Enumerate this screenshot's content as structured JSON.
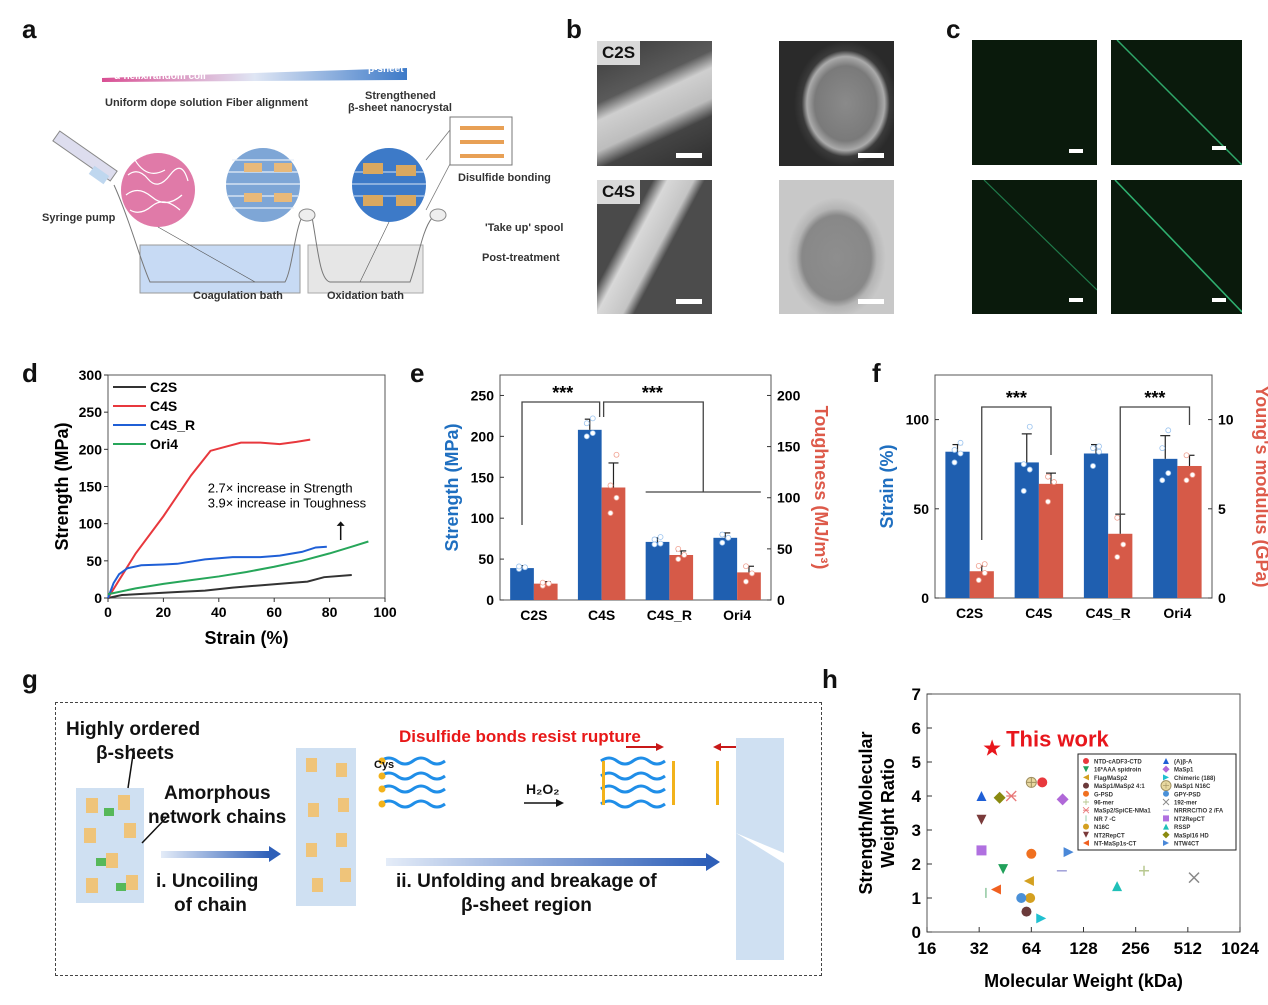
{
  "panels": {
    "a": {
      "label": "a",
      "gradient_left": "α-helix/random coil",
      "gradient_right": "β-sheet",
      "stage1": "Uniform dope solution",
      "stage2": "Fiber alignment",
      "stage3_line1": "Strengthened",
      "stage3_line2": "β-sheet nanocrystal",
      "disulfide": "Disulfide bonding",
      "syringe": "Syringe pump",
      "spool": "'Take up' spool",
      "post": "Post-treatment",
      "bath1": "Coagulation bath",
      "bath2": "Oxidation bath"
    },
    "b": {
      "label": "b",
      "row1_tag": "C2S",
      "row2_tag": "C4S"
    },
    "c": {
      "label": "c"
    },
    "d": {
      "label": "d",
      "annot1": "2.7× increase in Strength",
      "annot2": "3.9× increase in Toughness"
    },
    "e": {
      "label": "e",
      "sig1": "***",
      "sig2": "***"
    },
    "f": {
      "label": "f",
      "sig1": "***",
      "sig2": "***"
    },
    "g": {
      "label": "g",
      "ordered": "Highly ordered",
      "ordered2": "β-sheets",
      "amorphous": "Amorphous",
      "amorphous2": "network chains",
      "step1a": "i. Uncoiling",
      "step1b": "of chain",
      "disulfide": "Disulfide bonds resist rupture",
      "cys": "Cys",
      "h2o2": "H₂O₂",
      "step2a": "ii. Unfolding and breakage of",
      "step2b": "β-sheet region"
    },
    "h": {
      "label": "h",
      "annot": "This work"
    }
  },
  "colors": {
    "blue": "#1f5fb0",
    "red": "#d65a48",
    "c2s": "#333333",
    "c4s": "#e8383d",
    "c4s_r": "#1f5fd6",
    "ori4": "#27a65a",
    "this_work": "#e8161c",
    "strength_axis": "#1f6fc0",
    "toughness_axis": "#dd5a4a"
  },
  "chart_data": [
    {
      "id": "d",
      "type": "line",
      "xlabel": "Strain (%)",
      "ylabel": "Strength (MPa)",
      "xlim": [
        0,
        100
      ],
      "ylim": [
        0,
        300
      ],
      "xticks": [
        0,
        20,
        40,
        60,
        80,
        100
      ],
      "yticks": [
        0,
        50,
        100,
        150,
        200,
        250,
        300
      ],
      "legend": "top-left",
      "series": [
        {
          "name": "C2S",
          "color": "#333333",
          "points": [
            [
              0,
              0
            ],
            [
              5,
              4
            ],
            [
              15,
              6
            ],
            [
              25,
              8
            ],
            [
              35,
              10
            ],
            [
              45,
              14
            ],
            [
              55,
              17
            ],
            [
              65,
              20
            ],
            [
              72,
              22
            ],
            [
              78,
              28
            ],
            [
              88,
              31
            ]
          ]
        },
        {
          "name": "C4S",
          "color": "#e8383d",
          "points": [
            [
              0,
              0
            ],
            [
              5,
              30
            ],
            [
              10,
              60
            ],
            [
              20,
              110
            ],
            [
              30,
              165
            ],
            [
              37,
              198
            ],
            [
              40,
              201
            ],
            [
              48,
              209
            ],
            [
              55,
              209
            ],
            [
              62,
              207
            ],
            [
              68,
              210
            ],
            [
              73,
              213
            ]
          ]
        },
        {
          "name": "C4S_R",
          "color": "#1f5fd6",
          "points": [
            [
              0,
              0
            ],
            [
              2,
              20
            ],
            [
              4,
              32
            ],
            [
              7,
              40
            ],
            [
              12,
              44
            ],
            [
              20,
              45
            ],
            [
              25,
              46
            ],
            [
              35,
              52
            ],
            [
              45,
              55
            ],
            [
              55,
              55
            ],
            [
              62,
              57
            ],
            [
              70,
              62
            ],
            [
              75,
              68
            ],
            [
              79,
              69
            ]
          ]
        },
        {
          "name": "Ori4",
          "color": "#27a65a",
          "points": [
            [
              0,
              5
            ],
            [
              10,
              13
            ],
            [
              20,
              19
            ],
            [
              30,
              24
            ],
            [
              40,
              29
            ],
            [
              50,
              35
            ],
            [
              60,
              42
            ],
            [
              70,
              50
            ],
            [
              80,
              60
            ],
            [
              88,
              69
            ],
            [
              94,
              76
            ]
          ]
        }
      ],
      "annotations": [
        "2.7× increase in Strength",
        "3.9× increase in Toughness"
      ]
    },
    {
      "id": "e",
      "type": "bar",
      "categories": [
        "C2S",
        "C4S",
        "C4S_R",
        "Ori4"
      ],
      "ylabel": "Strength (MPa)",
      "y2label": "Toughness (MJ/m³)",
      "ylim": [
        0,
        275
      ],
      "y2lim": [
        0,
        220
      ],
      "yticks": [
        0,
        50,
        100,
        150,
        200,
        250
      ],
      "y2ticks": [
        0,
        50,
        100,
        150,
        200
      ],
      "series": [
        {
          "name": "Strength",
          "axis": "left",
          "values": [
            39,
            208,
            71,
            76
          ],
          "errors": [
            3,
            13,
            5,
            6
          ],
          "points": [
            [
              38,
              40,
              41
            ],
            [
              200,
              204,
              216,
              222
            ],
            [
              68,
              69,
              74,
              77
            ],
            [
              70,
              76,
              80
            ]
          ]
        },
        {
          "name": "Toughness",
          "axis": "right",
          "values": [
            16,
            110,
            44,
            27
          ],
          "errors": [
            2,
            24,
            4,
            6
          ],
          "points": [
            [
              14,
              16,
              17
            ],
            [
              85,
              100,
              112,
              142
            ],
            [
              40,
              44,
              50
            ],
            [
              18,
              26,
              33
            ]
          ]
        }
      ],
      "significance": [
        {
          "label": "***",
          "from": "C2S",
          "to": "C4S"
        },
        {
          "label": "***",
          "from": "C4S",
          "to": [
            "C4S_R",
            "Ori4"
          ]
        }
      ]
    },
    {
      "id": "f",
      "type": "bar",
      "categories": [
        "C2S",
        "C4S",
        "C4S_R",
        "Ori4"
      ],
      "ylabel": "Strain (%)",
      "y2label": "Young's modulus (GPa)",
      "ylim": [
        0,
        125
      ],
      "y2lim": [
        0,
        12.5
      ],
      "yticks": [
        0,
        50,
        100
      ],
      "y2ticks": [
        0,
        5,
        10
      ],
      "series": [
        {
          "name": "Strain",
          "axis": "left",
          "values": [
            82,
            76,
            81,
            78
          ],
          "errors": [
            4,
            16,
            5,
            13
          ],
          "points": [
            [
              76,
              81,
              83,
              87
            ],
            [
              60,
              72,
              75,
              96
            ],
            [
              74,
              82,
              84,
              85
            ],
            [
              66,
              70,
              84,
              94
            ]
          ]
        },
        {
          "name": "Young's modulus",
          "axis": "right",
          "values": [
            1.5,
            6.4,
            3.6,
            7.4
          ],
          "errors": [
            0.3,
            0.6,
            1.1,
            0.6
          ],
          "points": [
            [
              1.0,
              1.4,
              1.8,
              1.9
            ],
            [
              5.4,
              6.5,
              6.8
            ],
            [
              2.3,
              3.0,
              4.5
            ],
            [
              6.6,
              6.9,
              8.0
            ]
          ]
        }
      ],
      "significance": [
        {
          "label": "***",
          "from": "C2S",
          "to": "C4S"
        },
        {
          "label": "***",
          "from": "C4S_R",
          "to": "Ori4"
        }
      ]
    },
    {
      "id": "h",
      "type": "scatter",
      "xlabel": "Molecular Weight (kDa)",
      "ylabel": "Strength/Molecular Weight Ratio",
      "xscale": "log2",
      "xlim": [
        16,
        1024
      ],
      "ylim": [
        0,
        7
      ],
      "xticks": [
        16,
        32,
        64,
        128,
        256,
        512,
        1024
      ],
      "yticks": [
        0,
        1,
        2,
        3,
        4,
        5,
        6,
        7
      ],
      "legend": "top-right",
      "highlight": {
        "name": "This work",
        "x": 38,
        "y": 5.4,
        "marker": "star",
        "color": "#e8161c"
      },
      "series": [
        {
          "name": "NTD-cADF3-CTD",
          "marker": "circle",
          "color": "#e8383d",
          "x": 74,
          "y": 4.4
        },
        {
          "name": "16*AAA spidroin",
          "marker": "tri-down",
          "color": "#21a05a",
          "x": 44,
          "y": 1.85
        },
        {
          "name": "Flag/MaSp2",
          "marker": "tri-left",
          "color": "#d4a020",
          "x": 62,
          "y": 1.5
        },
        {
          "name": "MaSp1/MaSp2 4:1",
          "marker": "circle",
          "color": "#6b3a3a",
          "x": 60,
          "y": 0.6
        },
        {
          "name": "G-PSD",
          "marker": "circle",
          "color": "#f07020",
          "x": 64,
          "y": 2.3
        },
        {
          "name": "96-mer",
          "marker": "plus",
          "color": "#b8c890",
          "x": 286,
          "y": 1.8
        },
        {
          "name": "MaSp2/SpiCE-NMa1",
          "marker": "asterisk",
          "color": "#e87878",
          "x": 49,
          "y": 4.0
        },
        {
          "name": "NR 7 -C",
          "marker": "vline",
          "color": "#90c8a0",
          "x": 35,
          "y": 1.15
        },
        {
          "name": "N16C",
          "marker": "circle",
          "color": "#d4a020",
          "x": 63,
          "y": 1.0
        },
        {
          "name": "NT2RepCT",
          "marker": "tri-down",
          "color": "#7a3a3a",
          "x": 33,
          "y": 3.3
        },
        {
          "name": "NT-MaSp1s-CT",
          "marker": "tri-left",
          "color": "#f06020",
          "x": 40,
          "y": 1.25
        },
        {
          "name": "(A)β-A",
          "marker": "tri-up",
          "color": "#1f5fd6",
          "x": 33,
          "y": 4.0
        },
        {
          "name": "MaSp1",
          "marker": "diamond",
          "color": "#b068d8",
          "x": 97,
          "y": 3.9
        },
        {
          "name": "Chimeric (188)",
          "marker": "tri-right",
          "color": "#20c0d0",
          "x": 73,
          "y": 0.4
        },
        {
          "name": "MaSp1 N16C",
          "marker": "circle-cross",
          "color": "#e8d8a0",
          "x": 64,
          "y": 4.4
        },
        {
          "name": "GPY-PSD",
          "marker": "circle",
          "color": "#4a90d8",
          "x": 56,
          "y": 1.0
        },
        {
          "name": "192-mer",
          "marker": "x",
          "color": "#888888",
          "x": 556,
          "y": 1.6
        },
        {
          "name": "NRRRC/TiO 2 /FA",
          "marker": "hline",
          "color": "#a0a0d8",
          "x": 96,
          "y": 1.8
        },
        {
          "name": "NT2RepCT",
          "marker": "square",
          "color": "#b070e0",
          "x": 33,
          "y": 2.4
        },
        {
          "name": "RSSP",
          "marker": "tri-up",
          "color": "#20c0b8",
          "x": 200,
          "y": 1.35
        },
        {
          "name": "MaSpl16 HD",
          "marker": "diamond",
          "color": "#8a8a10",
          "x": 42,
          "y": 3.95
        },
        {
          "name": "NTW4CT",
          "marker": "tri-right",
          "color": "#4a88d8",
          "x": 105,
          "y": 2.35
        }
      ]
    }
  ]
}
